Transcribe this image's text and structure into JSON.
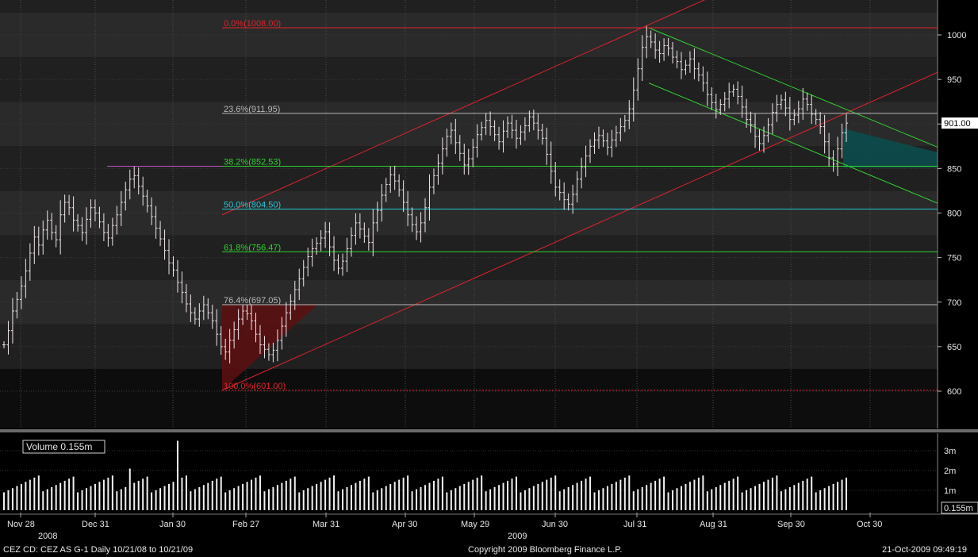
{
  "chart_data": {
    "type": "ohlc",
    "price_axis": {
      "ticks": [
        600,
        650,
        700,
        750,
        800,
        850,
        900,
        950,
        1000
      ],
      "range": [
        548,
        1046
      ]
    },
    "last_price": "901.00",
    "date_labels": [
      "Nov 28",
      "Dec 31",
      "Jan 30",
      "Feb 27",
      "Mar 31",
      "Apr 30",
      "May 29",
      "Jun 30",
      "Jul 31",
      "Aug 31",
      "Sep 30",
      "Oct 30"
    ],
    "year_labels": [
      "2008",
      "2009"
    ],
    "fibonacci": [
      {
        "label": "0.0%(1008.00)",
        "value": 1008.0,
        "color": "#e0222a"
      },
      {
        "label": "23.6%(911.95)",
        "value": 911.95,
        "color": "#b9b9b9"
      },
      {
        "label": "38.2%(852.53)",
        "value": 852.53,
        "color": "#2fd12f"
      },
      {
        "label": "50.0%(804.50)",
        "value": 804.5,
        "color": "#25c7d6"
      },
      {
        "label": "61.8%(756.47)",
        "value": 756.47,
        "color": "#2fd12f"
      },
      {
        "label": "76.4%(697.05)",
        "value": 697.05,
        "color": "#b9b9b9"
      },
      {
        "label": "100.0%(601.00)",
        "value": 601.0,
        "color": "#e0222a"
      }
    ],
    "price_series_closes": [
      652,
      668,
      690,
      703,
      718,
      735,
      755,
      773,
      764,
      781,
      792,
      778,
      770,
      798,
      812,
      806,
      792,
      786,
      778,
      793,
      806,
      800,
      790,
      778,
      772,
      786,
      798,
      812,
      826,
      838,
      842,
      830,
      819,
      808,
      796,
      783,
      771,
      758,
      744,
      736,
      722,
      711,
      698,
      688,
      681,
      690,
      697,
      688,
      679,
      664,
      650,
      644,
      657,
      669,
      681,
      690,
      687,
      679,
      664,
      652,
      647,
      641,
      646,
      657,
      673,
      688,
      701,
      714,
      726,
      739,
      751,
      760,
      766,
      772,
      779,
      762,
      747,
      738,
      746,
      760,
      775,
      789,
      782,
      774,
      767,
      789,
      803,
      820,
      832,
      843,
      836,
      826,
      812,
      798,
      787,
      779,
      789,
      806,
      829,
      842,
      856,
      872,
      886,
      893,
      879,
      867,
      854,
      861,
      874,
      888,
      896,
      904,
      897,
      888,
      880,
      892,
      901,
      893,
      884,
      891,
      898,
      908,
      901,
      893,
      884,
      866,
      847,
      829,
      823,
      815,
      810,
      821,
      838,
      852,
      864,
      875,
      882,
      887,
      881,
      874,
      882,
      890,
      897,
      904,
      917,
      938,
      962,
      986,
      998,
      992,
      983,
      979,
      988,
      985,
      975,
      970,
      961,
      966,
      973,
      962,
      955,
      946,
      933,
      924,
      916,
      922,
      928,
      936,
      939,
      931,
      919,
      905,
      899,
      886,
      878,
      887,
      899,
      913,
      922,
      927,
      918,
      905,
      910,
      917,
      928,
      922,
      911,
      905,
      897,
      880,
      862,
      855,
      872,
      890,
      901
    ],
    "volume": {
      "label": "Volume",
      "last": "0.155m",
      "axis_ticks": [
        "3m",
        "2m",
        "1m"
      ],
      "axis_values": [
        3,
        2,
        1
      ],
      "badge": "0.155m"
    }
  },
  "footer": {
    "ticker": "CEZ  CD:  CEZ AS    G-1   Daily  10/21/08 to 10/21/09",
    "copyright": "Copyright 2009 Bloomberg Finance L.P.",
    "timestamp": "21-Oct-2009 09:49:19"
  }
}
